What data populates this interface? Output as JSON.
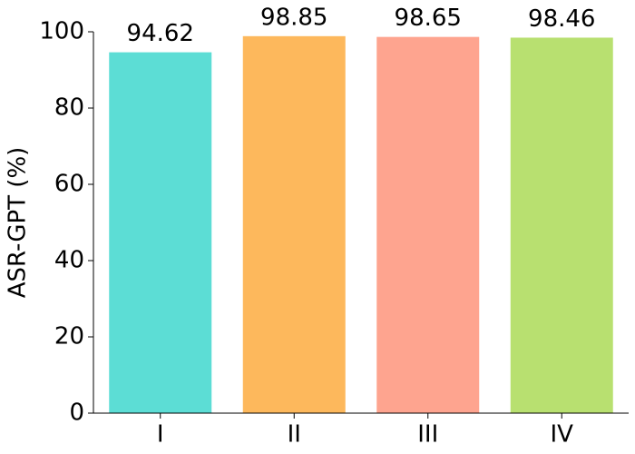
{
  "chart_data": {
    "type": "bar",
    "y_label": "ASR-GPT (%)",
    "categories": [
      "I",
      "II",
      "III",
      "IV"
    ],
    "values": [
      94.62,
      98.85,
      98.65,
      98.46
    ],
    "colors": [
      "#5cddd5",
      "#fdb85c",
      "#fea48f",
      "#b8e070"
    ],
    "ylim": [
      0,
      100
    ],
    "yticks": [
      0,
      20,
      40,
      60,
      80,
      100
    ]
  }
}
